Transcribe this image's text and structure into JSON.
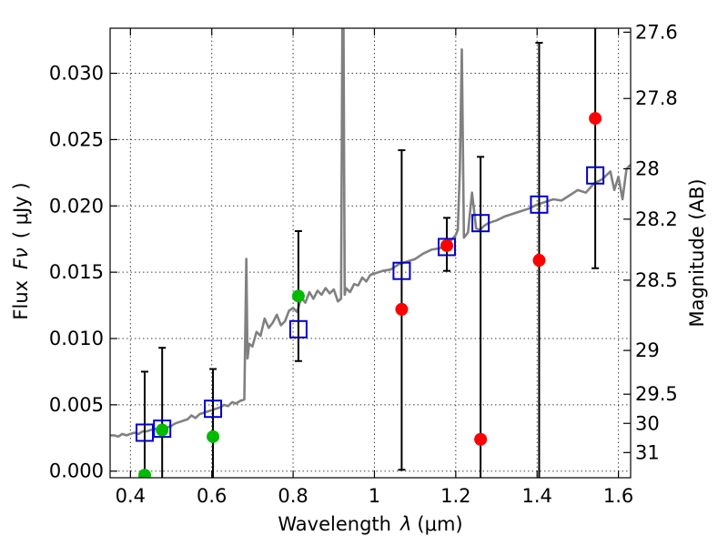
{
  "chart_data": {
    "type": "scatter",
    "title": "",
    "xlabel": "Wavelength",
    "xlabel_symbol": "λ",
    "xlabel_unit": "(μm)",
    "ylabel": "Flux",
    "ylabel_symbol": "Fν",
    "ylabel_unit": "( μJy )",
    "ylabel_right": "Magnitude (AB)",
    "xlim": [
      0.35,
      1.63
    ],
    "ylim": [
      -0.0005,
      0.0334
    ],
    "grid": true,
    "x_ticks": [
      {
        "value": 0.4,
        "label": "0.4"
      },
      {
        "value": 0.6,
        "label": "0.6"
      },
      {
        "value": 0.8,
        "label": "0.8"
      },
      {
        "value": 1.0,
        "label": "1"
      },
      {
        "value": 1.2,
        "label": "1.2"
      },
      {
        "value": 1.4,
        "label": "1.4"
      },
      {
        "value": 1.6,
        "label": "1.6"
      }
    ],
    "y_ticks": [
      {
        "value": 0.0,
        "label": "0.000"
      },
      {
        "value": 0.005,
        "label": "0.005"
      },
      {
        "value": 0.01,
        "label": "0.010"
      },
      {
        "value": 0.015,
        "label": "0.015"
      },
      {
        "value": 0.02,
        "label": "0.020"
      },
      {
        "value": 0.025,
        "label": "0.025"
      },
      {
        "value": 0.03,
        "label": "0.030"
      }
    ],
    "mag_ticks": [
      {
        "label": "27.6",
        "flux": 0.0331
      },
      {
        "label": "27.8",
        "flux": 0.0281
      },
      {
        "label": "28",
        "flux": 0.0228
      },
      {
        "label": "28.2",
        "flux": 0.019
      },
      {
        "label": "28.5",
        "flux": 0.0144
      },
      {
        "label": "29",
        "flux": 0.0091
      },
      {
        "label": "29.5",
        "flux": 0.0058
      },
      {
        "label": "30",
        "flux": 0.0036
      },
      {
        "label": "31",
        "flux": 0.0014
      }
    ],
    "series": [
      {
        "name": "Model spectrum",
        "kind": "line",
        "color": "#808080",
        "x": [
          0.35,
          0.36,
          0.37,
          0.38,
          0.39,
          0.4,
          0.41,
          0.42,
          0.43,
          0.44,
          0.45,
          0.46,
          0.47,
          0.48,
          0.49,
          0.5,
          0.51,
          0.52,
          0.53,
          0.54,
          0.55,
          0.56,
          0.57,
          0.58,
          0.59,
          0.6,
          0.61,
          0.62,
          0.63,
          0.64,
          0.65,
          0.66,
          0.67,
          0.68,
          0.685,
          0.688,
          0.692,
          0.7,
          0.71,
          0.72,
          0.73,
          0.74,
          0.75,
          0.76,
          0.77,
          0.78,
          0.79,
          0.8,
          0.81,
          0.82,
          0.83,
          0.84,
          0.85,
          0.86,
          0.87,
          0.88,
          0.89,
          0.9,
          0.91,
          0.918,
          0.921,
          0.924,
          0.927,
          0.93,
          0.94,
          0.95,
          0.96,
          0.97,
          0.98,
          0.99,
          1.0,
          1.02,
          1.04,
          1.06,
          1.08,
          1.1,
          1.12,
          1.14,
          1.16,
          1.18,
          1.2,
          1.205,
          1.21,
          1.215,
          1.22,
          1.23,
          1.24,
          1.25,
          1.26,
          1.27,
          1.28,
          1.3,
          1.32,
          1.34,
          1.36,
          1.38,
          1.4,
          1.42,
          1.44,
          1.46,
          1.48,
          1.5,
          1.52,
          1.54,
          1.56,
          1.58,
          1.59,
          1.6,
          1.61,
          1.62,
          1.63
        ],
        "y": [
          0.0027,
          0.0027,
          0.0026,
          0.0028,
          0.0027,
          0.0028,
          0.0029,
          0.0028,
          0.003,
          0.003,
          0.0031,
          0.0032,
          0.0031,
          0.0034,
          0.0033,
          0.0034,
          0.0036,
          0.0037,
          0.0038,
          0.0039,
          0.0042,
          0.004,
          0.0043,
          0.0044,
          0.0045,
          0.0046,
          0.0047,
          0.0048,
          0.005,
          0.0049,
          0.0052,
          0.0051,
          0.0053,
          0.0054,
          0.016,
          0.0085,
          0.0096,
          0.0094,
          0.0105,
          0.0102,
          0.0115,
          0.0108,
          0.0112,
          0.0118,
          0.011,
          0.0113,
          0.0121,
          0.0123,
          0.012,
          0.0131,
          0.0127,
          0.0135,
          0.013,
          0.0136,
          0.0133,
          0.0138,
          0.0134,
          0.0137,
          0.0128,
          0.013,
          0.0333,
          0.0333,
          0.0133,
          0.0138,
          0.0135,
          0.0141,
          0.014,
          0.0146,
          0.0143,
          0.0148,
          0.0149,
          0.0151,
          0.0152,
          0.0156,
          0.0158,
          0.016,
          0.0164,
          0.0167,
          0.0168,
          0.0171,
          0.0178,
          0.0182,
          0.0227,
          0.0318,
          0.0176,
          0.018,
          0.021,
          0.0183,
          0.0182,
          0.0185,
          0.0187,
          0.0189,
          0.0192,
          0.0194,
          0.0196,
          0.0198,
          0.0201,
          0.0203,
          0.0205,
          0.0204,
          0.0208,
          0.0212,
          0.021,
          0.0217,
          0.022,
          0.0226,
          0.0212,
          0.0222,
          0.0205,
          0.0228,
          0.0231
        ]
      },
      {
        "name": "Model photometry",
        "kind": "open-square",
        "color": "#0000cc",
        "x": [
          0.435,
          0.478,
          0.603,
          0.813,
          1.067,
          1.178,
          1.261,
          1.405,
          1.543
        ],
        "y": [
          0.0029,
          0.0032,
          0.0047,
          0.0107,
          0.0151,
          0.0169,
          0.0187,
          0.0201,
          0.0223
        ]
      },
      {
        "name": "Observed photometry",
        "kind": "circle",
        "x": [
          0.435,
          0.478,
          0.603,
          0.813,
          1.067,
          1.178,
          1.261,
          1.405,
          1.543
        ],
        "y": [
          -0.0003,
          0.0031,
          0.0026,
          0.0132,
          0.0122,
          0.017,
          0.0024,
          0.0159,
          0.0266
        ],
        "colors": [
          "#00bb00",
          "#00bb00",
          "#00bb00",
          "#00bb00",
          "#ff0000",
          "#ff0000",
          "#ff0000",
          "#ff0000",
          "#ff0000"
        ],
        "y_err_low": [
          -0.0006,
          -0.0006,
          -0.0006,
          0.0083,
          0.0001,
          0.0151,
          -0.0006,
          -0.0006,
          0.0153
        ],
        "y_err_high": [
          0.0075,
          0.0093,
          0.0077,
          0.0181,
          0.0242,
          0.0191,
          0.0237,
          0.0323,
          0.0336
        ]
      }
    ]
  }
}
